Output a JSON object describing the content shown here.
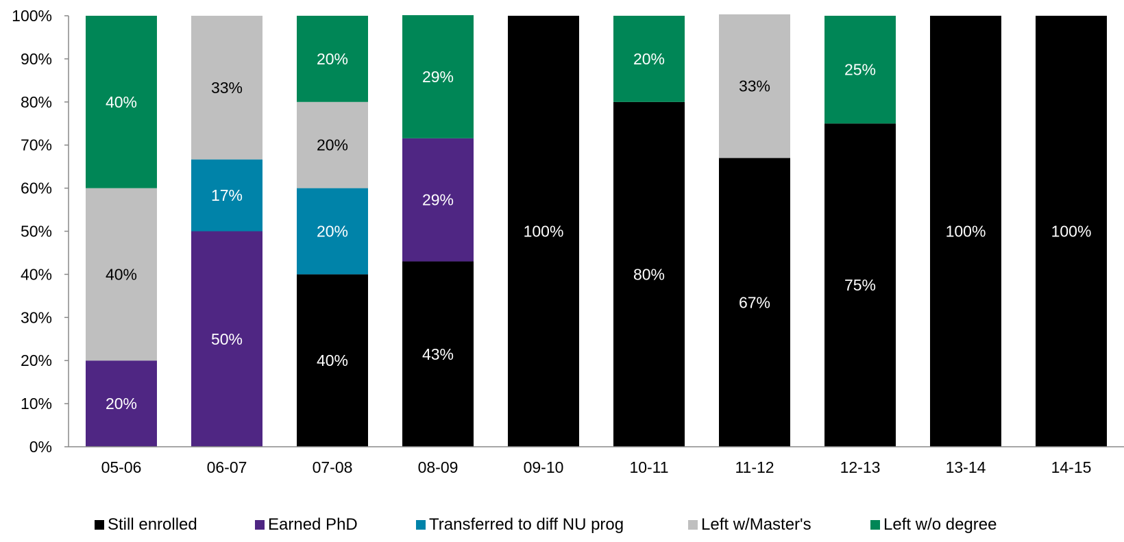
{
  "chart_data": {
    "type": "bar",
    "stacked": true,
    "categories": [
      "05-06",
      "06-07",
      "07-08",
      "08-09",
      "09-10",
      "10-11",
      "11-12",
      "12-13",
      "13-14",
      "14-15"
    ],
    "series": [
      {
        "name": "Still enrolled",
        "color": "#000000",
        "label_color": "#ffffff",
        "values": [
          0,
          0,
          40,
          43,
          100,
          80,
          67,
          75,
          100,
          100
        ],
        "labels": [
          "",
          "",
          "40%",
          "43%",
          "100%",
          "80%",
          "67%",
          "75%",
          "100%",
          "100%"
        ]
      },
      {
        "name": "Earned PhD",
        "color": "#4f2683",
        "label_color": "#ffffff",
        "values": [
          20,
          50,
          0,
          28.57,
          0,
          0,
          0,
          0,
          0,
          0
        ],
        "labels": [
          "20%",
          "50%",
          "",
          "29%",
          "",
          "",
          "",
          "",
          "",
          ""
        ]
      },
      {
        "name": "Transferred to diff NU prog",
        "color": "#0083a9",
        "label_color": "#ffffff",
        "values": [
          0,
          16.67,
          20,
          0,
          0,
          0,
          0,
          0,
          0,
          0
        ],
        "labels": [
          "",
          "17%",
          "20%",
          "",
          "",
          "",
          "",
          "",
          "",
          ""
        ]
      },
      {
        "name": "Left w/Master's",
        "color": "#bfbfbf",
        "label_color": "#000000",
        "values": [
          40,
          33.33,
          20,
          0,
          0,
          0,
          33.33,
          0,
          0,
          0
        ],
        "labels": [
          "40%",
          "33%",
          "20%",
          "",
          "",
          "",
          "33%",
          "",
          "",
          ""
        ]
      },
      {
        "name": "Left w/o degree",
        "color": "#008656",
        "label_color": "#ffffff",
        "values": [
          40,
          0,
          20,
          28.57,
          0,
          20,
          0,
          25,
          0,
          0
        ],
        "labels": [
          "40%",
          "",
          "20%",
          "29%",
          "",
          "20%",
          "",
          "25%",
          "",
          ""
        ]
      }
    ],
    "ylim": [
      0,
      100
    ],
    "yticks": [
      0,
      10,
      20,
      30,
      40,
      50,
      60,
      70,
      80,
      90,
      100
    ],
    "ytick_labels": [
      "0%",
      "10%",
      "20%",
      "30%",
      "40%",
      "50%",
      "60%",
      "70%",
      "80%",
      "90%",
      "100%"
    ],
    "grid": false,
    "legend_position": "bottom"
  }
}
